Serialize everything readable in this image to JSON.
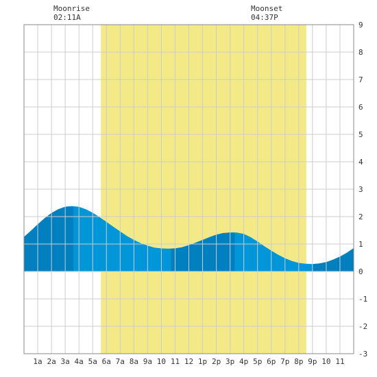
{
  "moon": {
    "rise_label": "Moonrise",
    "rise_time": "02:11A",
    "set_label": "Moonset",
    "set_time": "04:37P"
  },
  "chart_data": {
    "type": "area",
    "title": "",
    "xlabel": "",
    "ylabel": "",
    "x_tick_labels": [
      "1a",
      "2a",
      "3a",
      "4a",
      "5a",
      "6a",
      "7a",
      "8a",
      "9a",
      "10",
      "11",
      "12",
      "1p",
      "2p",
      "3p",
      "4p",
      "5p",
      "6p",
      "7p",
      "8p",
      "9p",
      "10",
      "11"
    ],
    "y_tick_labels": [
      "-3",
      "-2",
      "-1",
      "0",
      "1",
      "2",
      "3",
      "4",
      "5",
      "6",
      "7",
      "8",
      "9"
    ],
    "xlim": [
      0,
      24
    ],
    "ylim": [
      -3,
      9
    ],
    "grid": true,
    "daylight": {
      "start_hour": 5.6,
      "end_hour": 20.55,
      "color": "#f3ea87"
    },
    "colors": {
      "water": "#0096d8",
      "water_dark": "#0080bf",
      "grid": "#cccccc",
      "border": "#888888"
    },
    "dark_bands": [
      [
        0,
        3.6
      ],
      [
        10.7,
        15.35
      ],
      [
        21.0,
        24
      ]
    ],
    "tide_extremes": [
      {
        "time_hour": 3.6,
        "height": 2.38,
        "kind": "high"
      },
      {
        "time_hour": 10.75,
        "height": 0.83,
        "kind": "low"
      },
      {
        "time_hour": 15.35,
        "height": 1.42,
        "kind": "high"
      },
      {
        "time_hour": 21.0,
        "height": 0.27,
        "kind": "low"
      }
    ],
    "series": [
      {
        "x": [
          0,
          0.5,
          1,
          1.5,
          2,
          2.5,
          3,
          3.5,
          4,
          4.5,
          5,
          5.5,
          6,
          6.5,
          7,
          7.5,
          8,
          8.5,
          9,
          9.5,
          10,
          10.5,
          11,
          11.5,
          12,
          12.5,
          13,
          13.5,
          14,
          14.5,
          15,
          15.5,
          16,
          16.5,
          17,
          17.5,
          18,
          18.5,
          19,
          19.5,
          20,
          20.5,
          21,
          21.5,
          22,
          22.5,
          23,
          23.5,
          24
        ],
        "values": [
          1.26,
          1.48,
          1.72,
          1.94,
          2.13,
          2.27,
          2.36,
          2.38,
          2.36,
          2.27,
          2.14,
          1.98,
          1.81,
          1.63,
          1.46,
          1.29,
          1.15,
          1.03,
          0.94,
          0.87,
          0.84,
          0.83,
          0.84,
          0.88,
          0.96,
          1.05,
          1.15,
          1.25,
          1.34,
          1.4,
          1.42,
          1.42,
          1.37,
          1.25,
          1.09,
          0.92,
          0.76,
          0.61,
          0.48,
          0.38,
          0.31,
          0.28,
          0.27,
          0.29,
          0.34,
          0.43,
          0.54,
          0.68,
          0.85
        ]
      }
    ]
  }
}
